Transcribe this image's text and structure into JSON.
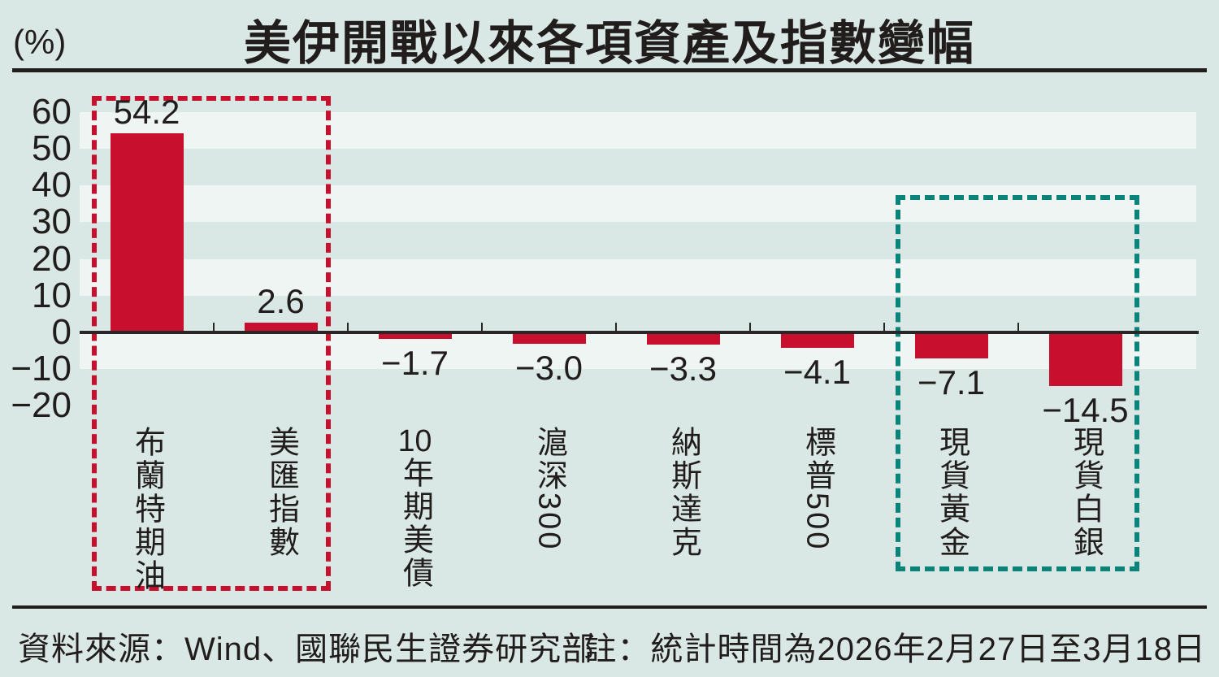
{
  "header": {
    "title": "美伊開戰以來各項資產及指數變幅",
    "unit_label": "(%)"
  },
  "footer": {
    "source": "資料來源：Wind、國聯民生證券研究部",
    "note": "註：統計時間為2026年2月27日至3月18日"
  },
  "chart_data": {
    "type": "bar",
    "title": "美伊開戰以來各項資產及指數變幅",
    "ylabel": "(%)",
    "categories": [
      "布蘭特期油",
      "美匯指數",
      "10年期美債",
      "滬深300",
      "納斯達克",
      "標普500",
      "現貨黃金",
      "現貨白銀"
    ],
    "values": [
      54.2,
      2.6,
      -1.7,
      -3.0,
      -3.3,
      -4.1,
      -7.1,
      -14.5
    ],
    "value_labels": [
      "54.2",
      "2.6",
      "−1.7",
      "−3.0",
      "−3.3",
      "−4.1",
      "−7.1",
      "−14.5"
    ],
    "y_ticks": [
      60,
      50,
      40,
      30,
      20,
      10,
      0,
      -10,
      -20
    ],
    "y_tick_labels": [
      "60",
      "50",
      "40",
      "30",
      "20",
      "10",
      "0",
      "−10",
      "−20"
    ],
    "ylim": [
      -25,
      70
    ],
    "grid": "alternating horizontal stripe bands every 10 units",
    "legend": "none",
    "bar_color": "#c8102e",
    "background_color": "#dae8e5",
    "stripe_color": "#eff5f3",
    "highlight_boxes": [
      {
        "name": "red-dashed-box",
        "categories": [
          "布蘭特期油",
          "美匯指數"
        ],
        "color": "#c8102e"
      },
      {
        "name": "teal-dashed-box",
        "categories": [
          "現貨黃金",
          "現貨白銀"
        ],
        "color": "#0a837b"
      }
    ]
  }
}
